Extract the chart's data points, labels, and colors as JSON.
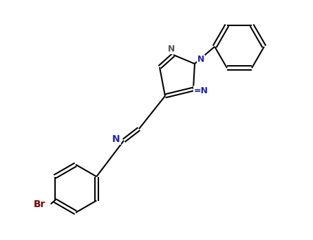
{
  "background_color": "#ffffff",
  "bond_color": "#000000",
  "n_color": "#2222bb",
  "br_color": "#7a0000",
  "line_width": 1.5,
  "figsize": [
    4.55,
    3.5
  ],
  "dpi": 100,
  "xlim": [
    0,
    9.1
  ],
  "ylim": [
    0,
    7.0
  ],
  "font_size": 9,
  "br_font_size": 10
}
